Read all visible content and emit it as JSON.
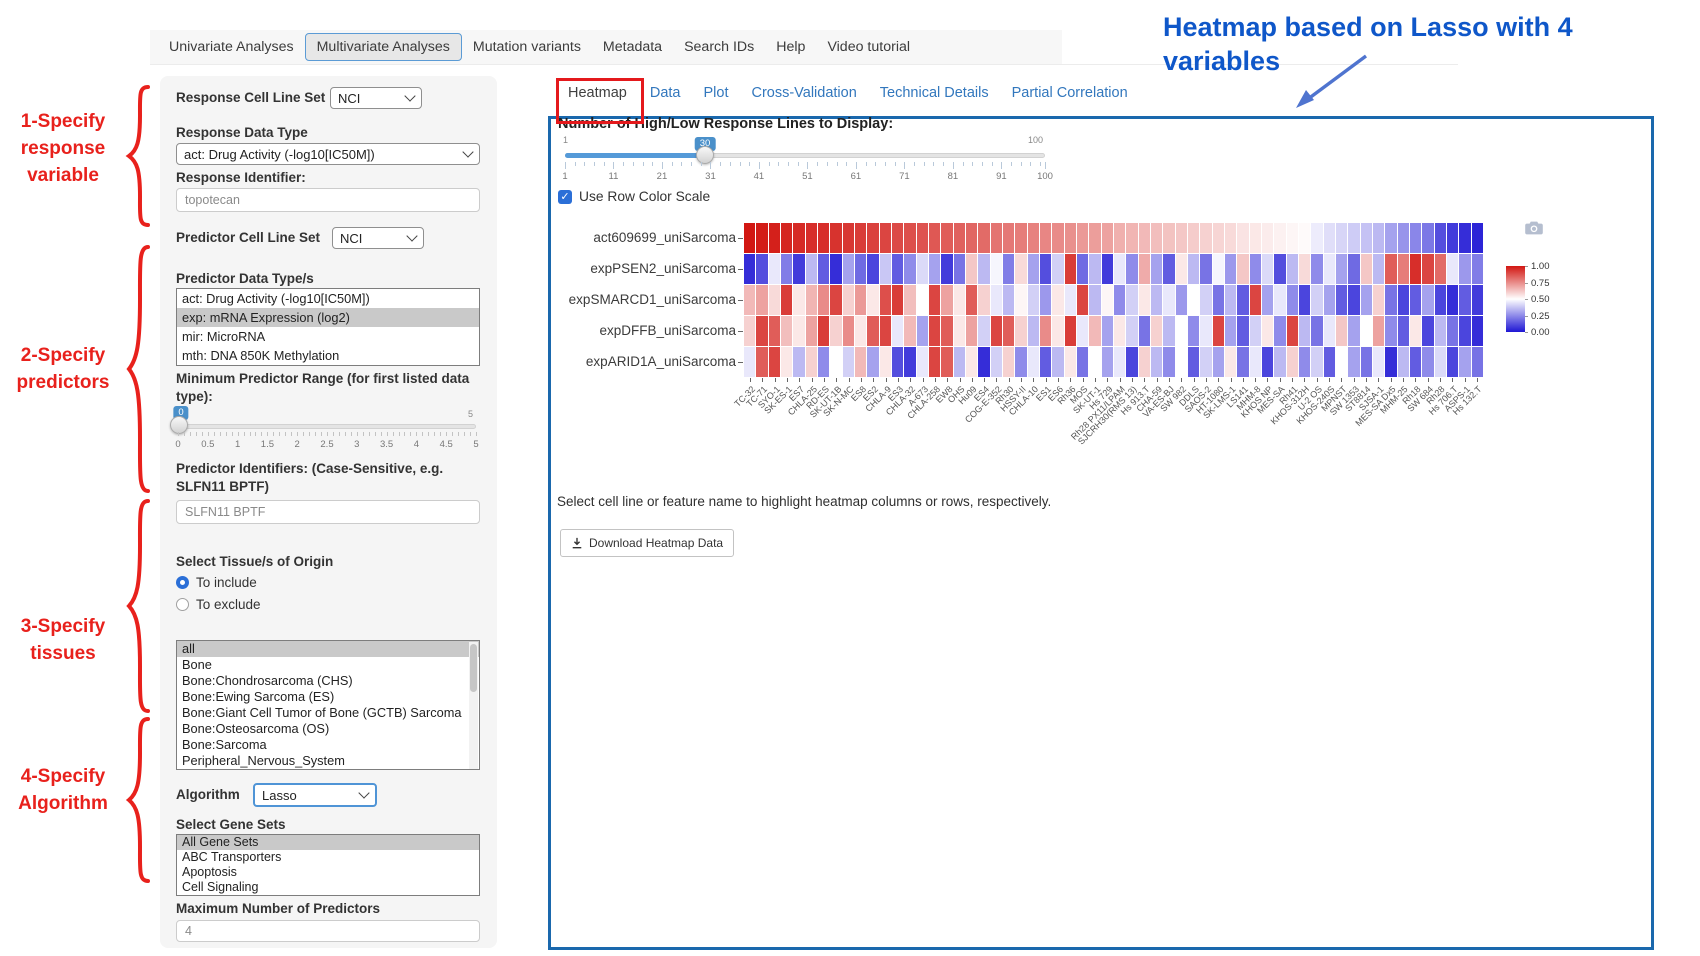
{
  "annotations": {
    "steps": [
      {
        "label": "1-Specify\nresponse\nvariable"
      },
      {
        "label": "2-Specify\npredictors"
      },
      {
        "label": "3-Specify\ntissues"
      },
      {
        "label": "4-Specify\nAlgorithm"
      }
    ],
    "callout": "Heatmap based on Lasso with 4 variables",
    "accent_red": "#e8211c",
    "accent_blue": "#0f57c9"
  },
  "nav": {
    "tabs": [
      "Univariate Analyses",
      "Multivariate Analyses",
      "Mutation variants",
      "Metadata",
      "Search IDs",
      "Help",
      "Video tutorial"
    ],
    "active_index": 1
  },
  "sidebar": {
    "response_cell_line_set": {
      "label": "Response Cell Line Set",
      "value": "NCI"
    },
    "response_data_type": {
      "label": "Response Data Type",
      "value": "act: Drug Activity (-log10[IC50M])"
    },
    "response_identifier": {
      "label": "Response Identifier:",
      "value": "topotecan"
    },
    "predictor_cell_line_set": {
      "label": "Predictor Cell Line Set",
      "value": "NCI"
    },
    "predictor_data_types": {
      "label": "Predictor Data Type/s",
      "options": [
        "act: Drug Activity (-log10[IC50M])",
        "exp: mRNA Expression (log2)",
        "mir: MicroRNA",
        "mth: DNA 850K Methylation"
      ],
      "selected_index": 1
    },
    "min_predictor_range": {
      "label": "Minimum Predictor Range (for first listed data type):",
      "min": 0,
      "max": 5,
      "value": "0",
      "max_label": "5",
      "tick_labels": [
        "0",
        "0.5",
        "1",
        "1.5",
        "2",
        "2.5",
        "3",
        "3.5",
        "4",
        "4.5",
        "5"
      ]
    },
    "predictor_identifiers": {
      "label": "Predictor Identifiers: (Case-Sensitive, e.g. SLFN11 BPTF)",
      "value": "SLFN11 BPTF"
    },
    "tissue": {
      "label": "Select Tissue/s of Origin",
      "radio_include": "To include",
      "radio_exclude": "To exclude",
      "include_selected": true,
      "options": [
        "all",
        "Bone",
        "Bone:Chondrosarcoma (CHS)",
        "Bone:Ewing Sarcoma (ES)",
        "Bone:Giant Cell Tumor of Bone (GCTB) Sarcoma",
        "Bone:Osteosarcoma (OS)",
        "Bone:Sarcoma",
        "Peripheral_Nervous_System"
      ],
      "selected_index": 0
    },
    "algorithm": {
      "label": "Algorithm",
      "value": "Lasso"
    },
    "gene_sets": {
      "label": "Select Gene Sets",
      "options": [
        "All Gene Sets",
        "ABC Transporters",
        "Apoptosis",
        "Cell Signaling"
      ],
      "selected_index": 0
    },
    "max_predictors": {
      "label": "Maximum Number of Predictors",
      "value": "4"
    }
  },
  "main": {
    "tabs": [
      "Heatmap",
      "Data",
      "Plot",
      "Cross-Validation",
      "Technical Details",
      "Partial Correlation"
    ],
    "active_tab_index": 0,
    "lines_slider": {
      "label": "Number of High/Low Response Lines to Display:",
      "min": 1,
      "max": 100,
      "value": "30",
      "min_label": "1",
      "max_label": "100",
      "tick_labels": [
        "1",
        "11",
        "21",
        "31",
        "41",
        "51",
        "61",
        "71",
        "81",
        "91",
        "100"
      ]
    },
    "row_color_checkbox": {
      "label": "Use Row Color Scale",
      "checked": true
    },
    "hint": "Select cell line or feature name to highlight heatmap columns or rows, respectively.",
    "download_button": "Download Heatmap Data"
  },
  "chart_data": {
    "type": "heatmap",
    "rows": [
      "act609699_uniSarcoma",
      "expPSEN2_uniSarcoma",
      "expSMARCD1_uniSarcoma",
      "expDFFB_uniSarcoma",
      "expARID1A_uniSarcoma"
    ],
    "columns": [
      "TC-32",
      "TC-71",
      "SYO-1",
      "SK-ES-1",
      "ES7",
      "CHLA-25",
      "RD-ES",
      "SK-UT-1B",
      "SK-N-MC",
      "ES8",
      "ES2",
      "CHLA-9",
      "ES3",
      "CHLA-32",
      "A-673",
      "CHLA-258",
      "EW8",
      "OHS",
      "Hu09",
      "ES4",
      "COG-E-352",
      "Rh30",
      "HSSY-II",
      "CHLA-10",
      "ES1",
      "ES6",
      "Rh36",
      "MOS",
      "SK-UT-1",
      "Hs 729",
      "Rh28 PX11/LPAM",
      "SJCRH30(RMS 13)",
      "Hs 913.T",
      "CHA-59",
      "VA-ES-BJ",
      "SW 982",
      "DDLS",
      "SAOS-2",
      "HT-1080",
      "SK-LMS-1",
      "LS141",
      "MHM-8",
      "KHOS NP",
      "MES-SA",
      "Rh41",
      "KHOS-312H",
      "U-2 OS",
      "KHOS-240S",
      "MPNST",
      "SW 1353",
      "ST8814",
      "SJSA-1",
      "MES-SA Dx5",
      "MHM-25",
      "Rh18",
      "SW 684",
      "Rh28",
      "Hs 706.T",
      "ASPS-1",
      "Hs 132.T"
    ],
    "values": [
      [
        1.0,
        0.99,
        0.98,
        0.97,
        0.96,
        0.95,
        0.95,
        0.94,
        0.93,
        0.92,
        0.91,
        0.9,
        0.89,
        0.88,
        0.87,
        0.86,
        0.85,
        0.84,
        0.83,
        0.82,
        0.8,
        0.79,
        0.78,
        0.77,
        0.76,
        0.75,
        0.74,
        0.72,
        0.71,
        0.7,
        0.67,
        0.66,
        0.65,
        0.64,
        0.63,
        0.62,
        0.61,
        0.6,
        0.59,
        0.58,
        0.56,
        0.55,
        0.54,
        0.53,
        0.52,
        0.51,
        0.46,
        0.43,
        0.41,
        0.39,
        0.37,
        0.35,
        0.3,
        0.27,
        0.24,
        0.21,
        0.12,
        0.08,
        0.05,
        0.03
      ],
      [
        0.05,
        0.12,
        0.45,
        0.22,
        0.08,
        0.35,
        0.15,
        0.05,
        0.3,
        0.18,
        0.1,
        0.38,
        0.15,
        0.25,
        0.42,
        0.3,
        0.08,
        0.2,
        0.62,
        0.35,
        0.48,
        0.22,
        0.58,
        0.3,
        0.12,
        0.4,
        0.92,
        0.18,
        0.35,
        0.08,
        0.45,
        0.25,
        0.68,
        0.3,
        0.15,
        0.55,
        0.35,
        0.2,
        0.48,
        0.28,
        0.62,
        0.25,
        0.42,
        0.12,
        0.35,
        0.58,
        0.25,
        0.45,
        0.3,
        0.18,
        0.62,
        0.35,
        0.85,
        0.78,
        0.95,
        0.9,
        0.82,
        0.45,
        0.28,
        0.22
      ],
      [
        0.65,
        0.7,
        0.58,
        0.92,
        0.55,
        0.66,
        0.75,
        0.9,
        0.6,
        0.72,
        0.55,
        0.88,
        0.92,
        0.64,
        0.5,
        0.9,
        0.7,
        0.55,
        0.85,
        0.6,
        0.45,
        0.35,
        0.52,
        0.4,
        0.28,
        0.55,
        0.45,
        0.9,
        0.35,
        0.52,
        0.25,
        0.4,
        0.55,
        0.35,
        0.45,
        0.28,
        0.5,
        0.4,
        0.2,
        0.35,
        0.15,
        0.9,
        0.3,
        0.45,
        0.25,
        0.1,
        0.4,
        0.3,
        0.15,
        0.1,
        0.3,
        0.6,
        0.2,
        0.1,
        0.15,
        0.3,
        0.1,
        0.05,
        0.15,
        0.08
      ],
      [
        0.6,
        0.9,
        0.85,
        0.64,
        0.55,
        0.7,
        0.92,
        0.6,
        0.75,
        0.55,
        0.85,
        0.9,
        0.45,
        0.65,
        0.3,
        0.9,
        0.85,
        0.55,
        0.7,
        0.4,
        0.9,
        0.85,
        0.6,
        0.35,
        0.75,
        0.55,
        0.92,
        0.45,
        0.65,
        0.3,
        0.55,
        0.4,
        0.2,
        0.6,
        0.35,
        0.5,
        0.25,
        0.45,
        0.9,
        0.3,
        0.15,
        0.4,
        0.55,
        0.25,
        0.9,
        0.35,
        0.2,
        0.45,
        0.62,
        0.3,
        0.5,
        0.7,
        0.25,
        0.15,
        0.55,
        0.1,
        0.35,
        0.2,
        0.1,
        0.05
      ],
      [
        0.45,
        0.85,
        0.9,
        0.55,
        0.35,
        0.6,
        0.25,
        0.5,
        0.4,
        0.65,
        0.3,
        0.55,
        0.12,
        0.08,
        0.45,
        0.9,
        0.85,
        0.35,
        0.55,
        0.05,
        0.4,
        0.6,
        0.25,
        0.45,
        0.15,
        0.35,
        0.55,
        0.2,
        0.5,
        0.3,
        0.45,
        0.1,
        0.6,
        0.35,
        0.25,
        0.5,
        0.15,
        0.4,
        0.3,
        0.55,
        0.2,
        0.45,
        0.1,
        0.35,
        0.6,
        0.25,
        0.4,
        0.15,
        0.5,
        0.3,
        0.2,
        0.45,
        0.05,
        0.35,
        0.15,
        0.25,
        0.42,
        0.1,
        0.3,
        0.2
      ]
    ],
    "colorscale": {
      "high_color_rgb": [
        210,
        23,
        18
      ],
      "mid_color": "#ffffff",
      "low_color_rgb": [
        30,
        22,
        212
      ],
      "ticks": [
        "1.00",
        "0.75",
        "0.50",
        "0.25",
        "0.00"
      ],
      "range": [
        0,
        1
      ],
      "legend_position": "right"
    }
  }
}
